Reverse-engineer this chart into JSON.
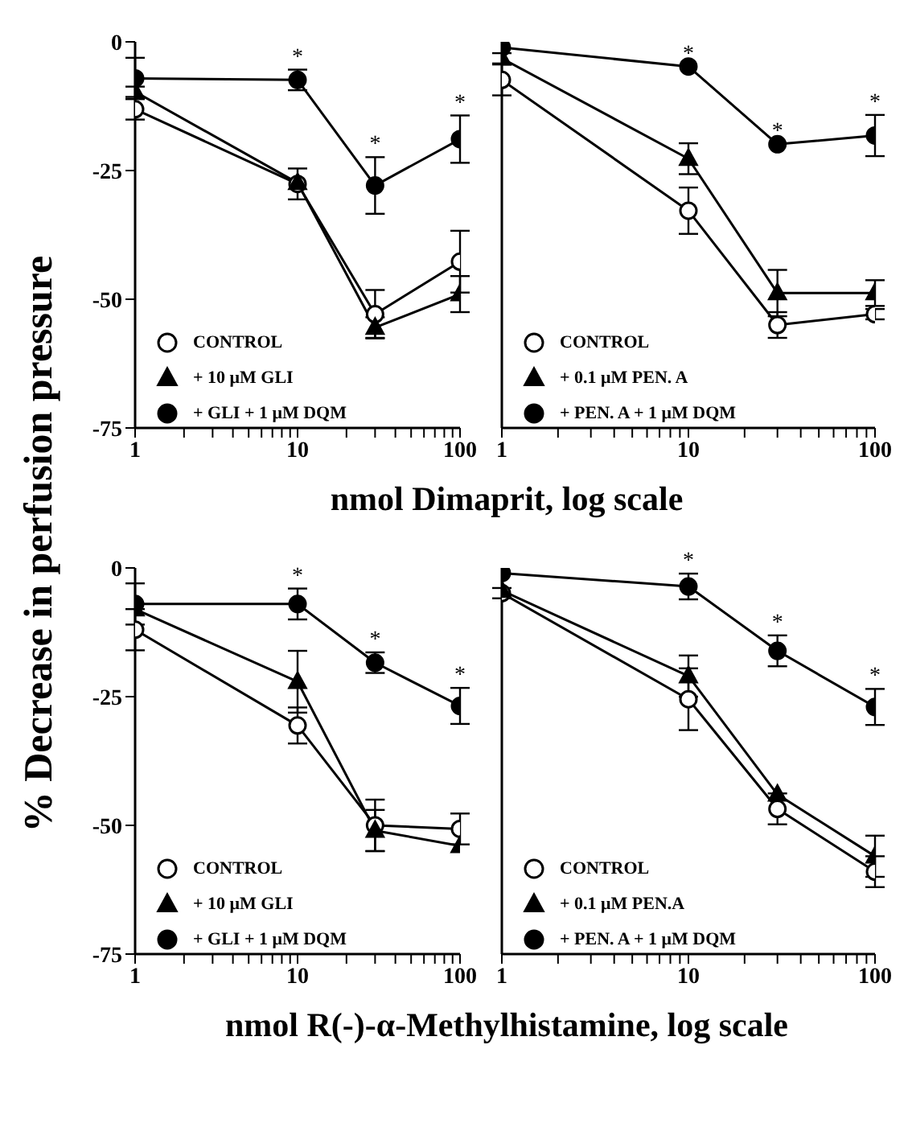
{
  "chart_data": [
    {
      "type": "line",
      "xlabel": "nmol Dimaprit, log scale",
      "ylabel": "% Decrease in perfusion pressure",
      "log": "x",
      "x": [
        1,
        10,
        30,
        100
      ],
      "xlim": [
        1,
        100
      ],
      "xticks": [
        1,
        {
          "value": 2,
          "label": null
        },
        {
          "value": 3,
          "label": null
        },
        {
          "value": 4,
          "label": null
        },
        {
          "value": 5,
          "label": null
        },
        {
          "value": 6,
          "label": null
        },
        {
          "value": 7,
          "label": null
        },
        {
          "value": 8,
          "label": null
        },
        {
          "value": 9,
          "label": null
        },
        10,
        {
          "value": 20,
          "label": null
        },
        {
          "value": 30,
          "label": null
        },
        {
          "value": 40,
          "label": null
        },
        {
          "value": 50,
          "label": null
        },
        {
          "value": 60,
          "label": null
        },
        {
          "value": 70,
          "label": null
        },
        {
          "value": 80,
          "label": null
        },
        {
          "value": 90,
          "label": null
        },
        100
      ],
      "ylim": [
        -75,
        0
      ],
      "yticks": [
        0,
        -25,
        -50,
        -75
      ],
      "legend": "bottom left",
      "series": [
        {
          "name": "CONTROL",
          "color": "#ffffff",
          "marker": "circle",
          "values": [
            -13.1,
            -27.6,
            -52.9,
            -42.7
          ],
          "errors": [
            2,
            3,
            4.7,
            6
          ]
        },
        {
          "name": "+ 10 μM GLI",
          "color": "#000000",
          "marker": "triangle",
          "values": [
            -9.7,
            -27.4,
            -55.5,
            -49
          ],
          "errors": [
            1,
            null,
            2,
            3.5
          ]
        },
        {
          "name": "+ GLI + 1 μM DQM",
          "color": "#000000",
          "marker": "circle",
          "values": [
            -7.1,
            -7.4,
            -27.9,
            -18.9
          ],
          "errors": [
            4,
            2,
            5.5,
            4.6
          ]
        }
      ],
      "annotations": [
        {
          "text": "*",
          "x": 10,
          "y": -7.4
        },
        {
          "text": "*",
          "x": 30,
          "y": -27.9
        },
        {
          "text": "*",
          "x": 100,
          "y": -18.9
        }
      ]
    },
    {
      "type": "line",
      "log": "x",
      "x": [
        1,
        10,
        30,
        100
      ],
      "xlim": [
        1,
        100
      ],
      "xticks": [
        1,
        {
          "value": 2,
          "label": null
        },
        {
          "value": 3,
          "label": null
        },
        {
          "value": 4,
          "label": null
        },
        {
          "value": 5,
          "label": null
        },
        {
          "value": 6,
          "label": null
        },
        {
          "value": 7,
          "label": null
        },
        {
          "value": 8,
          "label": null
        },
        {
          "value": 9,
          "label": null
        },
        10,
        {
          "value": 20,
          "label": null
        },
        {
          "value": 30,
          "label": null
        },
        {
          "value": 40,
          "label": null
        },
        {
          "value": 50,
          "label": null
        },
        {
          "value": 60,
          "label": null
        },
        {
          "value": 70,
          "label": null
        },
        {
          "value": 80,
          "label": null
        },
        {
          "value": 90,
          "label": null
        },
        100
      ],
      "ylim": [
        -75,
        0
      ],
      "yticks": [
        0,
        -25,
        -50,
        -75
      ],
      "tick_labels": "x",
      "legend": "bottom left",
      "series": [
        {
          "name": "CONTROL",
          "color": "#ffffff",
          "marker": "circle",
          "values": [
            -7.4,
            -32.8,
            -55,
            -52.9
          ],
          "errors": [
            3,
            4.5,
            2.5,
            1
          ]
        },
        {
          "name": "+ 0.1 μM PEN. A",
          "color": "#000000",
          "marker": "triangle",
          "values": [
            -3.2,
            -22.7,
            -48.8,
            -48.8
          ],
          "errors": [
            1,
            3,
            4.5,
            2.5
          ]
        },
        {
          "name": "+ PEN. A + 1 μM DQM",
          "color": "#000000",
          "marker": "circle",
          "values": [
            -1.1,
            -4.8,
            -19.9,
            -18.2
          ],
          "errors": [
            null,
            null,
            null,
            4
          ]
        }
      ],
      "annotations": [
        {
          "text": "*",
          "x": 10,
          "y": -4.8
        },
        {
          "text": "*",
          "x": 30,
          "y": -19.9
        },
        {
          "text": "*",
          "x": 100,
          "y": -18.2
        }
      ]
    },
    {
      "type": "line",
      "xlabel": "nmol R(-)-α-Methylhistamine, log scale",
      "log": "x",
      "x": [
        1,
        10,
        30,
        100
      ],
      "xlim": [
        1,
        100
      ],
      "xticks": [
        1,
        {
          "value": 2,
          "label": null
        },
        {
          "value": 3,
          "label": null
        },
        {
          "value": 4,
          "label": null
        },
        {
          "value": 5,
          "label": null
        },
        {
          "value": 6,
          "label": null
        },
        {
          "value": 7,
          "label": null
        },
        {
          "value": 8,
          "label": null
        },
        {
          "value": 9,
          "label": null
        },
        10,
        {
          "value": 20,
          "label": null
        },
        {
          "value": 30,
          "label": null
        },
        {
          "value": 40,
          "label": null
        },
        {
          "value": 50,
          "label": null
        },
        {
          "value": 60,
          "label": null
        },
        {
          "value": 70,
          "label": null
        },
        {
          "value": 80,
          "label": null
        },
        {
          "value": 90,
          "label": null
        },
        100
      ],
      "ylim": [
        -75,
        0
      ],
      "yticks": [
        0,
        -25,
        -50,
        -75
      ],
      "legend": "bottom left",
      "series": [
        {
          "name": "CONTROL",
          "color": "#ffffff",
          "marker": "circle",
          "values": [
            -12,
            -30.6,
            -50,
            -50.7
          ],
          "errors": [
            4,
            3.5,
            5,
            3
          ]
        },
        {
          "name": "+ 10 μM GLI",
          "color": "#000000",
          "marker": "triangle",
          "values": [
            -8,
            -22.1,
            -51,
            -54
          ],
          "errors": [
            null,
            6,
            4,
            null
          ]
        },
        {
          "name": "+ GLI + 1 μM DQM",
          "color": "#000000",
          "marker": "circle",
          "values": [
            -7,
            -7,
            -18.4,
            -26.8
          ],
          "errors": [
            4,
            3,
            2,
            3.5
          ]
        }
      ],
      "annotations": [
        {
          "text": "*",
          "x": 10,
          "y": -7
        },
        {
          "text": "*",
          "x": 30,
          "y": -18.4
        },
        {
          "text": "*",
          "x": 100,
          "y": -26.8
        }
      ]
    },
    {
      "type": "line",
      "log": "x",
      "x": [
        1,
        10,
        30,
        100
      ],
      "xlim": [
        1,
        100
      ],
      "xticks": [
        1,
        {
          "value": 2,
          "label": null
        },
        {
          "value": 3,
          "label": null
        },
        {
          "value": 4,
          "label": null
        },
        {
          "value": 5,
          "label": null
        },
        {
          "value": 6,
          "label": null
        },
        {
          "value": 7,
          "label": null
        },
        {
          "value": 8,
          "label": null
        },
        {
          "value": 9,
          "label": null
        },
        10,
        {
          "value": 20,
          "label": null
        },
        {
          "value": 30,
          "label": null
        },
        {
          "value": 40,
          "label": null
        },
        {
          "value": 50,
          "label": null
        },
        {
          "value": 60,
          "label": null
        },
        {
          "value": 70,
          "label": null
        },
        {
          "value": 80,
          "label": null
        },
        {
          "value": 90,
          "label": null
        },
        100
      ],
      "ylim": [
        -75,
        0
      ],
      "yticks": [
        0,
        -25,
        -50,
        -75
      ],
      "tick_labels": "x",
      "legend": "bottom left",
      "series": [
        {
          "name": "CONTROL",
          "color": "#ffffff",
          "marker": "circle",
          "values": [
            -4.9,
            -25.5,
            -46.8,
            -59
          ],
          "errors": [
            1,
            6,
            3,
            3
          ]
        },
        {
          "name": "+ 0.1 μM PEN.A",
          "color": "#000000",
          "marker": "triangle",
          "values": [
            -4.4,
            -21,
            -44,
            -56
          ],
          "errors": [
            null,
            4,
            null,
            4
          ]
        },
        {
          "name": "+ PEN. A + 1 μM DQM",
          "color": "#000000",
          "marker": "circle",
          "values": [
            -1,
            -3.6,
            -16.1,
            -27
          ],
          "errors": [
            null,
            2.5,
            3,
            3.5
          ]
        }
      ],
      "annotations": [
        {
          "text": "*",
          "x": 10,
          "y": -3.6
        },
        {
          "text": "*",
          "x": 30,
          "y": -16.1
        },
        {
          "text": "*",
          "x": 100,
          "y": -27
        }
      ]
    }
  ]
}
